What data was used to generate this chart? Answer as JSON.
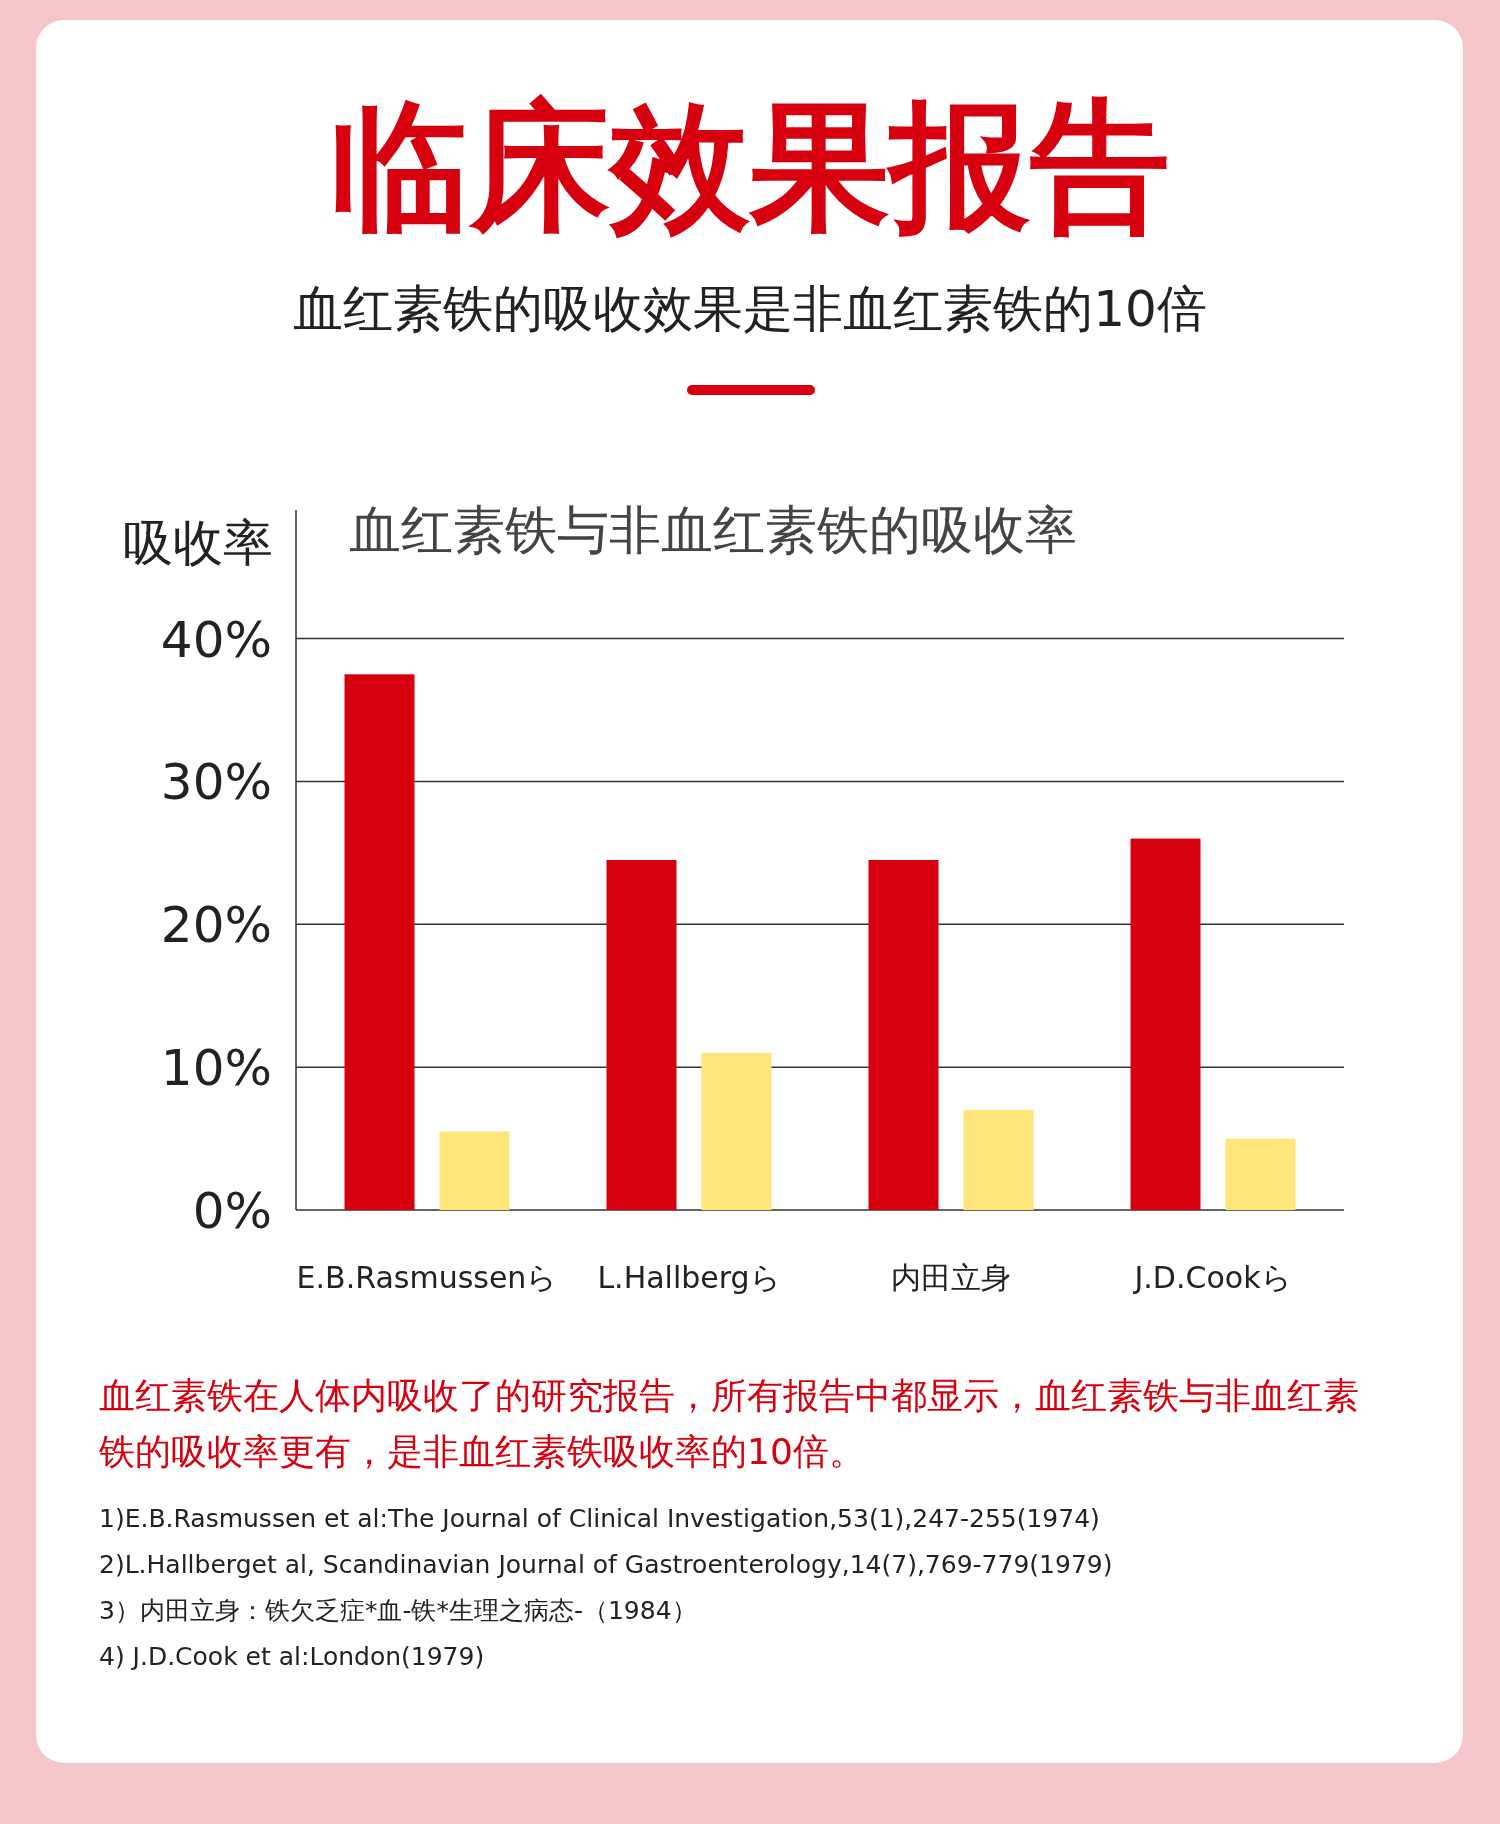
{
  "chart_data": {
    "type": "bar",
    "title": "临床效果报告",
    "subtitle": "血红素铁的吸收效果是非血红素铁的10倍",
    "ylabel": "吸收率",
    "categories": [
      "E.B.Rasmussenら",
      "L.Hallbergら",
      "内田立身",
      "J.D.Cookら"
    ],
    "series": [
      {
        "color": "#d7000f",
        "values": [
          37.5,
          24.5,
          24.5,
          26
        ]
      },
      {
        "color": "#ffe57a",
        "values": [
          5.5,
          11,
          7,
          5
        ]
      }
    ],
    "ylim": [
      0,
      49
    ],
    "yticks": [
      {
        "value": 0,
        "label": "0%"
      },
      {
        "value": 10,
        "label": "10%"
      },
      {
        "value": 20,
        "label": "20%"
      },
      {
        "value": 30,
        "label": "30%"
      },
      {
        "value": 40,
        "label": "40%"
      }
    ],
    "grid": "y",
    "annotations": [
      "血红素铁与非血红素铁的吸收率",
      "血红素铁在人体内吸收了的研究报告，所有报告中都显示，血红素铁与非血红素铁的吸收率更有，是非血红素铁吸收率的10倍。",
      "1)E.B.Rasmussen et al:The Journal of Clinical Investigation,53(1),247-255(1974)",
      "2)L.Hallberget al, Scandinavian Journal of Gastroenterology,14(7),769-779(1979)",
      "3）内田立身：铁欠乏症*血-铁*生理之病态-（1984）",
      "4) J.D.Cook et al:London(1979)"
    ]
  }
}
